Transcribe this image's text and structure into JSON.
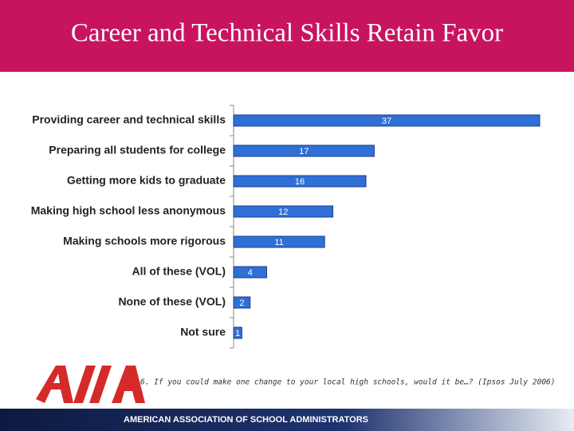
{
  "chart_data": {
    "type": "bar",
    "orientation": "horizontal",
    "title": "Career and Technical Skills Retain Favor",
    "categories": [
      "Providing career and technical skills",
      "Preparing all students for college",
      "Getting more kids to graduate",
      "Making high school less anonymous",
      "Making schools more rigorous",
      "All of these (VOL)",
      "None of these (VOL)",
      "Not sure"
    ],
    "values": [
      37,
      17,
      16,
      12,
      11,
      4,
      2,
      1
    ],
    "color": "#2f6fd6",
    "note": "6. If you could make one change to your local high schools, would it be…? (Ipsos July 2006)"
  },
  "footer": {
    "organization": "AMERICAN ASSOCIATION OF SCHOOL ADMINISTRATORS"
  }
}
